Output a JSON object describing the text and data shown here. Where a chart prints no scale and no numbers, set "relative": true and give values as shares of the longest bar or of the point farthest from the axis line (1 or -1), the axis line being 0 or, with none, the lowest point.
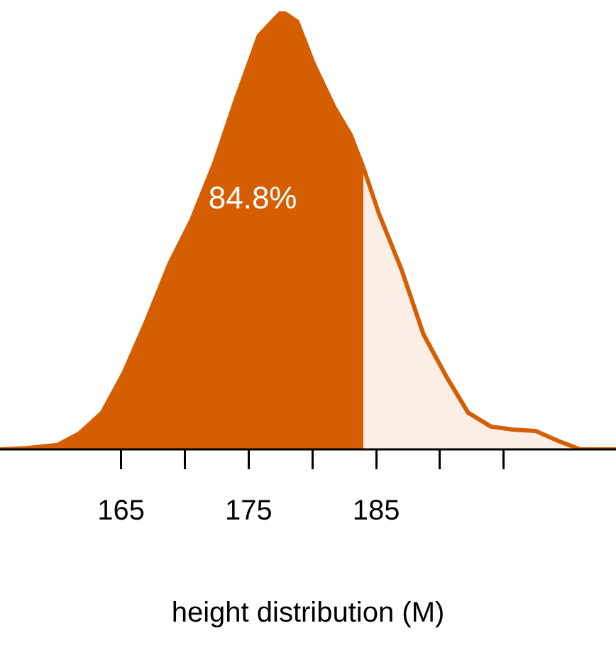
{
  "chart_data": {
    "type": "area",
    "relative": true,
    "xlabel": "height distribution (M)",
    "annotations": [
      "84.8%"
    ],
    "xlim": [
      155.5,
      203.8
    ],
    "xticks": [
      {
        "value": 165,
        "label": "165"
      },
      {
        "value": 170,
        "label": null
      },
      {
        "value": 175,
        "label": "175"
      },
      {
        "value": 180,
        "label": null
      },
      {
        "value": 185,
        "label": "185"
      },
      {
        "value": 190,
        "label": null
      },
      {
        "value": 195,
        "label": null
      }
    ],
    "grid": false,
    "legend": false,
    "series": [
      {
        "color": "#d55e00",
        "x": [
          155.5,
          157.6,
          160,
          161.7,
          163.5,
          165.2,
          167,
          168.8,
          170.5,
          172.3,
          174,
          175.8,
          177.6,
          178.8,
          180.1,
          181.7,
          183,
          184
        ],
        "values": [
          0,
          0.003,
          0.01,
          0.036,
          0.084,
          0.175,
          0.295,
          0.425,
          0.523,
          0.653,
          0.8,
          0.945,
          1,
          0.977,
          0.88,
          0.782,
          0.718,
          0.643
        ]
      },
      {
        "color": "#fbeee6",
        "x": [
          184,
          185.2,
          187,
          188.7,
          190.5,
          192.2,
          194,
          195.8,
          197.5,
          199.3,
          201,
          203.8
        ],
        "values": [
          0.643,
          0.539,
          0.409,
          0.263,
          0.166,
          0.084,
          0.052,
          0.045,
          0.042,
          0.019,
          0,
          0
        ]
      }
    ]
  }
}
